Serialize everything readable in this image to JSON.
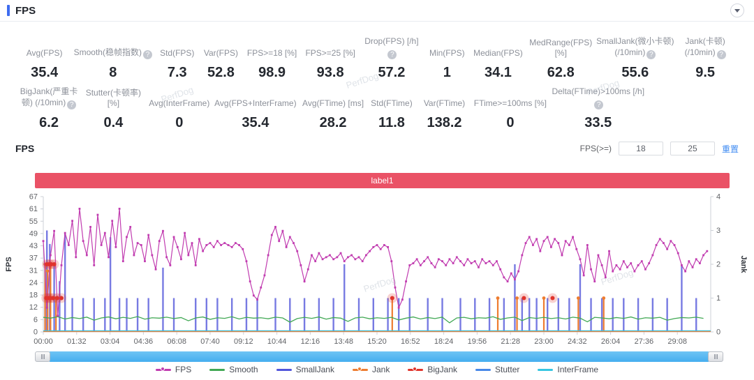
{
  "header": {
    "title": "FPS"
  },
  "metrics": {
    "row1": [
      {
        "label": "Avg(FPS)",
        "value": "35.4",
        "help": false
      },
      {
        "label": "Smooth(稳帧指数)",
        "value": "8",
        "help": true
      },
      {
        "label": "Std(FPS)",
        "value": "7.3",
        "help": false
      },
      {
        "label": "Var(FPS)",
        "value": "52.8",
        "help": false
      },
      {
        "label": "FPS>=18 [%]",
        "value": "98.9",
        "help": false
      },
      {
        "label": "FPS>=25 [%]",
        "value": "93.8",
        "help": false
      },
      {
        "label": "Drop(FPS) [/h]",
        "value": "57.2",
        "help": true
      },
      {
        "label": "Min(FPS)",
        "value": "1",
        "help": false
      },
      {
        "label": "Median(FPS)",
        "value": "34.1",
        "help": false
      },
      {
        "label": "MedRange(FPS)[%]",
        "value": "62.8",
        "help": false
      },
      {
        "label": "SmallJank(微小卡顿) (/10min)",
        "value": "55.6",
        "help": true
      },
      {
        "label": "Jank(卡顿) (/10min)",
        "value": "9.5",
        "help": true
      }
    ],
    "row2": [
      {
        "label": "BigJank(严重卡顿) (/10min)",
        "value": "6.2",
        "help": true
      },
      {
        "label": "Stutter(卡顿率) [%]",
        "value": "0.4",
        "help": false
      },
      {
        "label": "Avg(InterFrame)",
        "value": "0",
        "help": false
      },
      {
        "label": "Avg(FPS+InterFrame)",
        "value": "35.4",
        "help": false
      },
      {
        "label": "Avg(FTime) [ms]",
        "value": "28.2",
        "help": false
      },
      {
        "label": "Std(FTime)",
        "value": "11.8",
        "help": false
      },
      {
        "label": "Var(FTime)",
        "value": "138.2",
        "help": false
      },
      {
        "label": "FTime>=100ms [%]",
        "value": "0",
        "help": false
      },
      {
        "label": "Delta(FTime)>100ms [/h]",
        "value": "33.5",
        "help": true
      }
    ]
  },
  "chart_controls": {
    "section_title": "FPS",
    "filter_label": "FPS(>=)",
    "threshold1": "18",
    "threshold2": "25",
    "reset_label": "重置"
  },
  "banner_label": "label1",
  "watermark_text": "PerfDog",
  "chart_data": {
    "type": "line",
    "title": "label1",
    "x_axis": {
      "total_seconds": 1840,
      "tick_interval_s": 92,
      "tick_labels": [
        "00:00",
        "01:32",
        "03:04",
        "04:36",
        "06:08",
        "07:40",
        "09:12",
        "10:44",
        "12:16",
        "13:48",
        "15:20",
        "16:52",
        "18:24",
        "19:56",
        "21:28",
        "23:00",
        "24:32",
        "26:04",
        "27:36",
        "29:08"
      ]
    },
    "y_left": {
      "label": "FPS",
      "max": 67,
      "tick_labels": [
        67,
        61,
        55,
        49,
        43,
        37,
        31,
        24,
        18,
        12,
        6,
        0
      ]
    },
    "y_right": {
      "label": "Jank",
      "max": 4,
      "tick_labels": [
        4,
        3,
        2,
        1,
        0
      ]
    },
    "series": {
      "fps": {
        "name": "FPS",
        "color": "#c13cb0",
        "interval_s": 10,
        "values": [
          45,
          12,
          38,
          50,
          8,
          33,
          49,
          43,
          55,
          37,
          61,
          45,
          38,
          52,
          33,
          58,
          43,
          49,
          37,
          55,
          42,
          61,
          35,
          47,
          52,
          38,
          44,
          43,
          35,
          48,
          38,
          31,
          45,
          50,
          37,
          33,
          47,
          42,
          36,
          49,
          38,
          44,
          33,
          46,
          40,
          43,
          44,
          42,
          45,
          43,
          44,
          43,
          42,
          44,
          43,
          41,
          35,
          25,
          18,
          16,
          22,
          28,
          38,
          48,
          52,
          45,
          50,
          42,
          47,
          44,
          40,
          33,
          25,
          31,
          38,
          35,
          39,
          36,
          37,
          38,
          36,
          37,
          39,
          35,
          37,
          38,
          36,
          37,
          35,
          38,
          40,
          42,
          43,
          41,
          43,
          42,
          35,
          22,
          12,
          16,
          25,
          33,
          34,
          36,
          33,
          35,
          37,
          34,
          32,
          36,
          35,
          33,
          36,
          34,
          37,
          35,
          33,
          36,
          34,
          35,
          32,
          36,
          34,
          35,
          33,
          35,
          31,
          27,
          25,
          29,
          26,
          30,
          38,
          44,
          47,
          43,
          46,
          40,
          45,
          47,
          42,
          46,
          44,
          38,
          45,
          43,
          47,
          41,
          36,
          28,
          43,
          31,
          25,
          38,
          33,
          27,
          40,
          30,
          33,
          31,
          35,
          32,
          34,
          30,
          33,
          35,
          31,
          34,
          38,
          43,
          46,
          44,
          41,
          45,
          43,
          39,
          33,
          30,
          35,
          32,
          36,
          34,
          38,
          40
        ]
      },
      "smooth": {
        "name": "Smooth",
        "color": "#41a854",
        "interval_s": 20,
        "values": [
          7.2,
          6.8,
          7.5,
          6.4,
          7.1,
          6.6,
          7.3,
          5.8,
          6.9,
          7.4,
          6.5,
          7.2,
          6.7,
          7.6,
          6.3,
          7.0,
          6.8,
          7.3,
          6.6,
          7.1,
          5.5,
          6.9,
          7.4,
          6.2,
          7.0,
          6.7,
          7.5,
          6.4,
          7.2,
          6.8,
          7.0,
          6.5,
          7.3,
          6.9,
          4.8,
          6.6,
          7.2,
          6.7,
          7.4,
          6.3,
          7.1,
          6.8,
          5.2,
          6.9,
          7.3,
          6.5,
          7.0,
          6.7,
          7.2,
          5.9,
          6.8,
          7.4,
          6.4,
          7.1,
          6.6,
          7.3,
          4.5,
          6.9,
          7.2,
          6.5,
          7.0,
          6.8,
          7.5,
          6.2,
          6.9,
          7.3,
          5.6,
          7.1,
          6.7,
          7.2,
          6.6,
          7.0,
          6.4,
          7.3,
          6.8,
          5.0,
          7.2,
          6.9,
          6.5,
          7.1,
          6.7,
          7.4,
          6.3,
          7.0,
          6.8,
          7.2,
          5.8,
          6.6,
          7.1,
          6.9,
          7.3,
          6.7
        ]
      },
      "smalljank": {
        "name": "SmallJank",
        "color": "#5156db",
        "unit": "jank_count",
        "events": [
          [
            5,
            2
          ],
          [
            10,
            3
          ],
          [
            18,
            2.6
          ],
          [
            30,
            2
          ],
          [
            45,
            1.5
          ],
          [
            60,
            2.9
          ],
          [
            80,
            1
          ],
          [
            110,
            1
          ],
          [
            140,
            1
          ],
          [
            170,
            1
          ],
          [
            185,
            2.8
          ],
          [
            210,
            1
          ],
          [
            230,
            1
          ],
          [
            260,
            1
          ],
          [
            290,
            1
          ],
          [
            330,
            1.9
          ],
          [
            360,
            1
          ],
          [
            420,
            1
          ],
          [
            450,
            1
          ],
          [
            480,
            1
          ],
          [
            520,
            1
          ],
          [
            560,
            1
          ],
          [
            590,
            1
          ],
          [
            640,
            1
          ],
          [
            680,
            1
          ],
          [
            720,
            1
          ],
          [
            760,
            1
          ],
          [
            800,
            1
          ],
          [
            830,
            2
          ],
          [
            870,
            1
          ],
          [
            910,
            1
          ],
          [
            950,
            1
          ],
          [
            980,
            1
          ],
          [
            1010,
            1
          ],
          [
            1060,
            1
          ],
          [
            1100,
            1
          ],
          [
            1150,
            1
          ],
          [
            1190,
            1
          ],
          [
            1230,
            1
          ],
          [
            1270,
            1
          ],
          [
            1300,
            2
          ],
          [
            1320,
            1
          ],
          [
            1340,
            1
          ],
          [
            1360,
            1
          ],
          [
            1390,
            1
          ],
          [
            1420,
            1
          ],
          [
            1450,
            1
          ],
          [
            1480,
            2
          ],
          [
            1510,
            1
          ],
          [
            1540,
            1
          ],
          [
            1570,
            1
          ],
          [
            1600,
            1
          ],
          [
            1640,
            1
          ],
          [
            1680,
            1
          ],
          [
            1720,
            1
          ],
          [
            1760,
            2
          ],
          [
            1800,
            1
          ]
        ]
      },
      "jank": {
        "name": "Jank",
        "color": "#ee7c30",
        "unit": "jank_count",
        "events": [
          [
            5,
            2
          ],
          [
            12,
            1.8
          ],
          [
            20,
            2
          ],
          [
            35,
            1
          ],
          [
            962,
            1
          ],
          [
            1253,
            1
          ],
          [
            1306,
            1
          ],
          [
            1380,
            1
          ],
          [
            1475,
            1
          ],
          [
            1545,
            1
          ]
        ]
      },
      "bigjank": {
        "name": "BigJank",
        "color": "#e0342c",
        "unit": "jank_count",
        "events": [
          [
            10,
            2
          ],
          [
            16,
            2
          ],
          [
            22,
            2
          ],
          [
            30,
            2
          ],
          [
            8,
            1
          ],
          [
            14,
            1
          ],
          [
            20,
            1
          ],
          [
            27,
            1
          ],
          [
            38,
            1
          ],
          [
            50,
            1
          ],
          [
            962,
            1
          ],
          [
            1325,
            1
          ],
          [
            1404,
            1
          ]
        ]
      },
      "stutter": {
        "name": "Stutter",
        "color": "#4888e8",
        "baseline": 0
      },
      "interframe": {
        "name": "InterFrame",
        "color": "#36c6e2",
        "baseline": 0
      }
    }
  },
  "legend": [
    {
      "label": "FPS",
      "color": "#c13cb0",
      "dot": true
    },
    {
      "label": "Smooth",
      "color": "#41a854",
      "dot": false
    },
    {
      "label": "SmallJank",
      "color": "#5156db",
      "dot": false
    },
    {
      "label": "Jank",
      "color": "#ee7c30",
      "dot": true
    },
    {
      "label": "BigJank",
      "color": "#e0342c",
      "dot": true
    },
    {
      "label": "Stutter",
      "color": "#4888e8",
      "dot": false
    },
    {
      "label": "InterFrame",
      "color": "#36c6e2",
      "dot": false
    }
  ]
}
